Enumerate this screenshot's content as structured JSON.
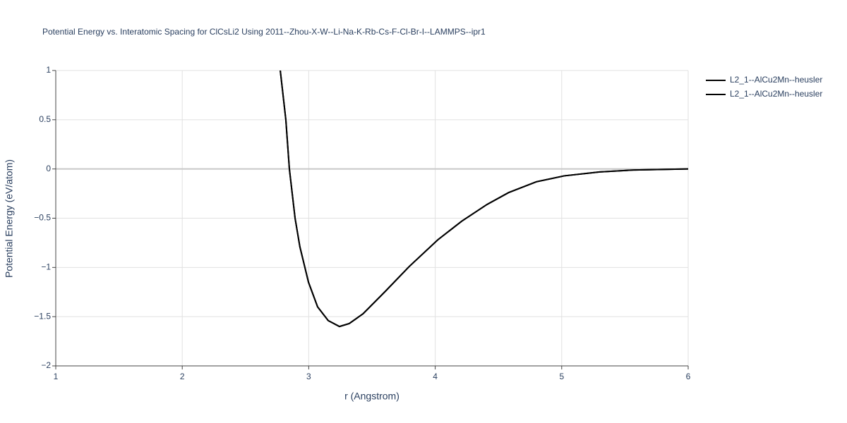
{
  "chart_data": {
    "type": "line",
    "title": "Potential Energy vs. Interatomic Spacing for ClCsLi2 Using 2011--Zhou-X-W--Li-Na-K-Rb-Cs-F-Cl-Br-I--LAMMPS--ipr1",
    "x_label": "r (Angstrom)",
    "y_label": "Potential Energy (eV/atom)",
    "xlim": [
      1,
      6
    ],
    "ylim": [
      -2,
      1
    ],
    "xticks": [
      1,
      2,
      3,
      4,
      5,
      6
    ],
    "yticks": [
      {
        "value": -2,
        "label": "−2"
      },
      {
        "value": -1.5,
        "label": "−1.5"
      },
      {
        "value": -1,
        "label": "−1"
      },
      {
        "value": -0.5,
        "label": "−0.5"
      },
      0,
      0.5,
      1
    ],
    "grid": true,
    "series": [
      {
        "name": "L2_1--AlCu2Mn--heusler",
        "color": "#000000",
        "x": [
          2.775,
          2.819,
          2.847,
          2.892,
          2.93,
          2.998,
          3.07,
          3.154,
          3.243,
          3.32,
          3.43,
          3.6,
          3.795,
          4.02,
          4.21,
          4.41,
          4.58,
          4.8,
          5.02,
          5.3,
          5.58,
          6
        ],
        "values": [
          1,
          0.5,
          0,
          -0.5,
          -0.79,
          -1.15,
          -1.4,
          -1.54,
          -1.6,
          -1.57,
          -1.47,
          -1.25,
          -0.99,
          -0.72,
          -0.53,
          -0.36,
          -0.24,
          -0.13,
          -0.07,
          -0.03,
          -0.01,
          0
        ]
      },
      {
        "name": "L2_1--AlCu2Mn--heusler",
        "color": "#000000",
        "x": [
          2.775,
          2.819,
          2.847,
          2.892,
          2.93,
          2.998,
          3.07,
          3.154,
          3.243,
          3.32,
          3.43,
          3.6,
          3.795,
          4.02,
          4.21,
          4.41,
          4.58,
          4.8,
          5.02,
          5.3,
          5.58,
          6
        ],
        "values": [
          1,
          0.5,
          0,
          -0.5,
          -0.79,
          -1.15,
          -1.4,
          -1.54,
          -1.6,
          -1.57,
          -1.47,
          -1.25,
          -0.99,
          -0.72,
          -0.53,
          -0.36,
          -0.24,
          -0.13,
          -0.07,
          -0.03,
          -0.01,
          0
        ]
      }
    ]
  }
}
